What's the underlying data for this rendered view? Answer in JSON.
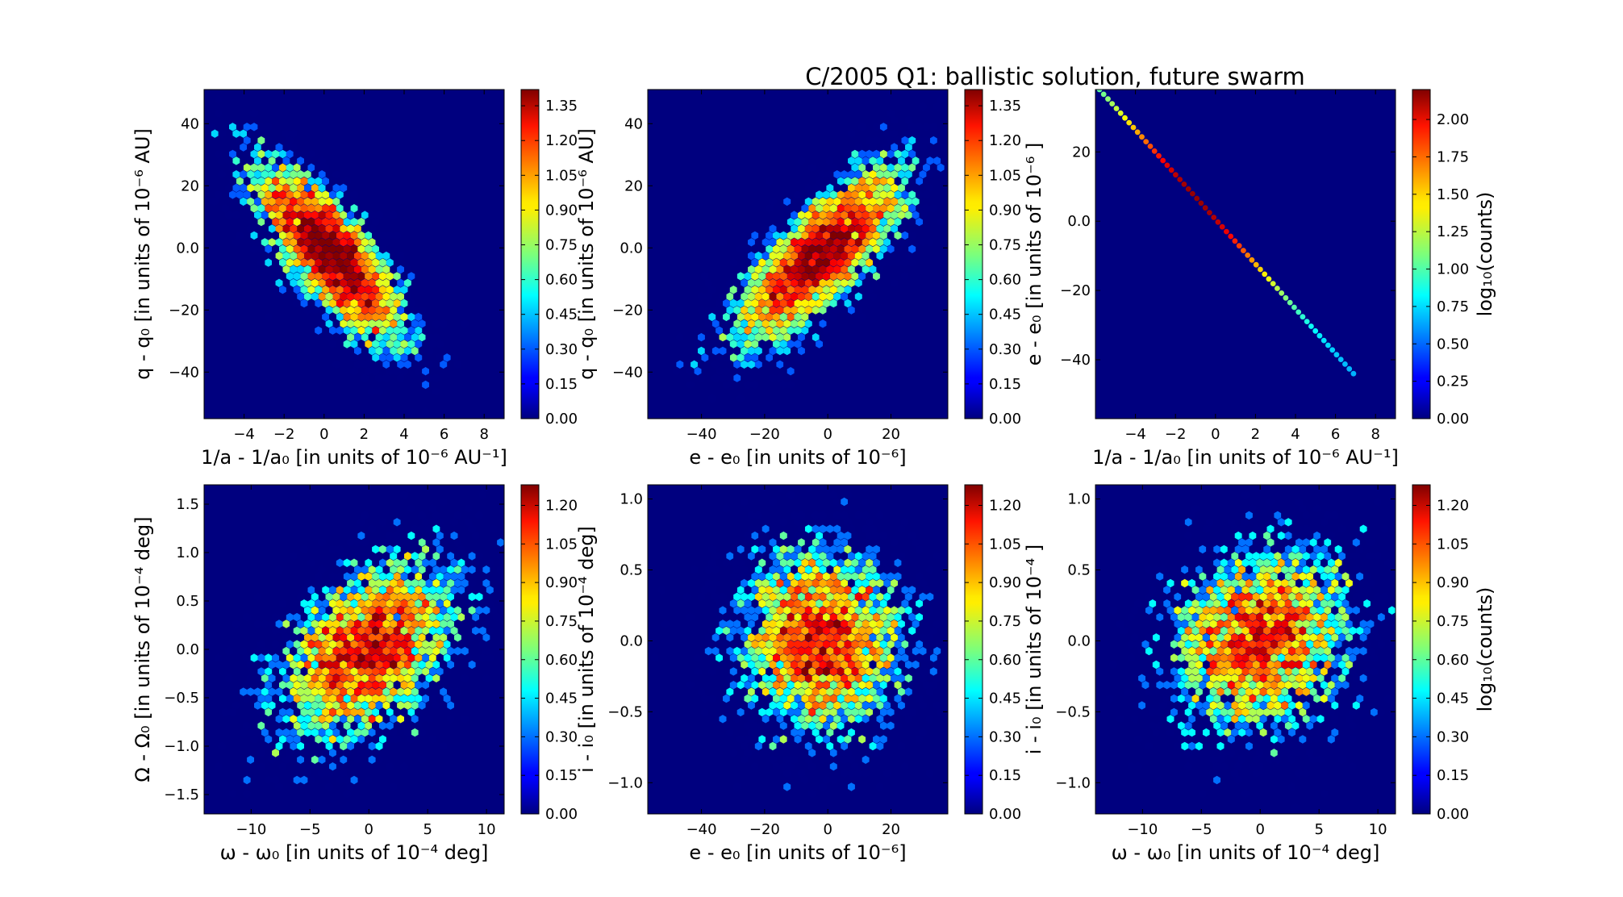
{
  "figure_title": "C/2005 Q1:  ballistic solution, future swarm",
  "chart_data": [
    {
      "id": "p1",
      "type": "heatmap",
      "xlabel": "1/a - 1/a₀ [in units of 10⁻⁶ AU⁻¹]",
      "ylabel": "q - q₀ [in units of 10⁻⁶ AU]",
      "xlim": [
        -6,
        9
      ],
      "ylim": [
        -55,
        51
      ],
      "xticks": [
        -4,
        -2,
        0,
        2,
        4,
        6,
        8
      ],
      "yticks": [
        -40,
        -20,
        0,
        20,
        40
      ],
      "distribution": {
        "mx": 0.3,
        "my": -2,
        "sx": 1.9,
        "sy": 15,
        "rho": -0.78,
        "n": 4200
      },
      "colorbar": {
        "vmax": 1.42,
        "ticks": [
          "0.00",
          "0.15",
          "0.30",
          "0.45",
          "0.60",
          "0.75",
          "0.90",
          "1.05",
          "1.20",
          "1.35"
        ],
        "label": ""
      }
    },
    {
      "id": "p2",
      "type": "heatmap",
      "xlabel": "e - e₀ [in units of 10⁻⁶]",
      "ylabel": "q - q₀ [in units of 10⁻⁶ AU]",
      "xlim": [
        -57,
        38
      ],
      "ylim": [
        -55,
        51
      ],
      "xticks": [
        -40,
        -20,
        0,
        20
      ],
      "yticks": [
        -40,
        -20,
        0,
        20,
        40
      ],
      "distribution": {
        "mx": -2,
        "my": -2,
        "sx": 14,
        "sy": 15,
        "rho": 0.78,
        "n": 4200
      },
      "colorbar": {
        "vmax": 1.42,
        "ticks": [
          "0.00",
          "0.15",
          "0.30",
          "0.45",
          "0.60",
          "0.75",
          "0.90",
          "1.05",
          "1.20",
          "1.35"
        ],
        "label": ""
      }
    },
    {
      "id": "p3",
      "type": "heatmap",
      "xlabel": "1/a - 1/a₀ [in units of 10⁻⁶ AU⁻¹]",
      "ylabel": "e - e₀ [in units of 10⁻⁶ ]",
      "xlim": [
        -6,
        9
      ],
      "ylim": [
        -57,
        38
      ],
      "xticks": [
        -4,
        -2,
        0,
        2,
        4,
        6,
        8
      ],
      "yticks": [
        -40,
        -20,
        0,
        20
      ],
      "line": {
        "x0": -5.8,
        "y0": 38,
        "x1": 6.9,
        "y1": -44
      },
      "colorbar": {
        "vmax": 2.2,
        "ticks": [
          "0.00",
          "0.25",
          "0.50",
          "0.75",
          "1.00",
          "1.25",
          "1.50",
          "1.75",
          "2.00"
        ],
        "label": "log₁₀(counts)"
      }
    },
    {
      "id": "p4",
      "type": "heatmap",
      "xlabel": "ω - ω₀ [in units of 10⁻⁴  deg]",
      "ylabel": "Ω - Ω₀ [in units of 10⁻⁴  deg]",
      "xlim": [
        -14,
        11.5
      ],
      "ylim": [
        -1.7,
        1.7
      ],
      "xticks": [
        -10,
        -5,
        0,
        5,
        10
      ],
      "yticks": [
        -1.5,
        -1.0,
        -0.5,
        0.0,
        0.5,
        1.0,
        1.5
      ],
      "distribution": {
        "mx": 0,
        "my": 0,
        "sx": 4,
        "sy": 0.5,
        "rho": 0.45,
        "n": 3800
      },
      "colorbar": {
        "vmax": 1.28,
        "ticks": [
          "0.00",
          "0.15",
          "0.30",
          "0.45",
          "0.60",
          "0.75",
          "0.90",
          "1.05",
          "1.20"
        ],
        "label": ""
      }
    },
    {
      "id": "p5",
      "type": "heatmap",
      "xlabel": "e - e₀ [in units of 10⁻⁶]",
      "ylabel": "i - i₀ [in units of 10⁻⁴  deg]",
      "xlim": [
        -57,
        38
      ],
      "ylim": [
        -1.22,
        1.1
      ],
      "xticks": [
        -40,
        -20,
        0,
        20
      ],
      "yticks": [
        -1.0,
        -0.5,
        0.0,
        0.5,
        1.0
      ],
      "distribution": {
        "mx": -2,
        "my": 0,
        "sx": 14,
        "sy": 0.35,
        "rho": 0.0,
        "n": 3800
      },
      "colorbar": {
        "vmax": 1.28,
        "ticks": [
          "0.00",
          "0.15",
          "0.30",
          "0.45",
          "0.60",
          "0.75",
          "0.90",
          "1.05",
          "1.20"
        ],
        "label": ""
      }
    },
    {
      "id": "p6",
      "type": "heatmap",
      "xlabel": "ω - ω₀ [in units of 10⁻⁴  deg]",
      "ylabel": "i - i₀ [in units of 10⁻⁴ ]",
      "xlim": [
        -14,
        11.5
      ],
      "ylim": [
        -1.22,
        1.1
      ],
      "xticks": [
        -10,
        -5,
        0,
        5,
        10
      ],
      "yticks": [
        -1.0,
        -0.5,
        0.0,
        0.5,
        1.0
      ],
      "distribution": {
        "mx": 0,
        "my": 0,
        "sx": 4,
        "sy": 0.35,
        "rho": 0.15,
        "n": 3800
      },
      "colorbar": {
        "vmax": 1.28,
        "ticks": [
          "0.00",
          "0.15",
          "0.30",
          "0.45",
          "0.60",
          "0.75",
          "0.90",
          "1.05",
          "1.20"
        ],
        "label": "log₁₀(counts)"
      }
    }
  ]
}
